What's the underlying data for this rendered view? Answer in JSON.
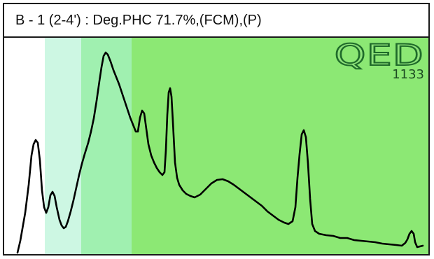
{
  "panel": {
    "title": "B - 1 (2-4') : Deg.PHC 71.7%,(FCM),(P)"
  },
  "logo": {
    "word": "QED",
    "number": "1133"
  },
  "colors": {
    "band_white": "#ffffff",
    "band_pale": "#cdf7e3",
    "band_mint": "#a0f0b0",
    "band_green": "#8ce874",
    "trace": "#000000"
  }
}
